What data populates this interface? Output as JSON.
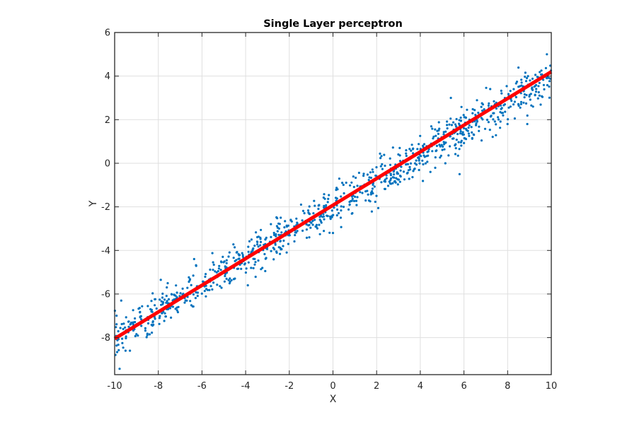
{
  "chart_data": {
    "type": "scatter",
    "title": "Single Layer perceptron",
    "xlabel": "X",
    "ylabel": "Y",
    "xlim": [
      -10,
      10
    ],
    "ylim": [
      -9.7,
      6
    ],
    "x_ticks": [
      -10,
      -8,
      -6,
      -4,
      -2,
      0,
      2,
      4,
      6,
      8,
      10
    ],
    "y_ticks": [
      -8,
      -6,
      -4,
      -2,
      0,
      2,
      4,
      6
    ],
    "grid": true,
    "legend": null,
    "series": [
      {
        "name": "data",
        "kind": "scatter",
        "color": "#0072BD",
        "marker_size": 2,
        "n_points": 1000,
        "x_range": [
          -10,
          10
        ],
        "model": {
          "slope": 0.6,
          "intercept": -2,
          "noise_std": 0.45
        },
        "notable_points": [
          {
            "x": -9.7,
            "y": -6.3
          },
          {
            "x": -9.3,
            "y": -8.6
          },
          {
            "x": -9.5,
            "y": -8.6
          },
          {
            "x": 4.5,
            "y": 0.9
          },
          {
            "x": 5.8,
            "y": -0.5
          },
          {
            "x": 5.4,
            "y": 3.0
          },
          {
            "x": 9.8,
            "y": 5.0
          },
          {
            "x": 8.9,
            "y": 1.8
          },
          {
            "x": 0.0,
            "y": -3.2
          },
          {
            "x": -3.9,
            "y": -5.6
          }
        ]
      },
      {
        "name": "fit",
        "kind": "line",
        "color": "#FF0000",
        "line_width": 5,
        "x": [
          -10,
          10
        ],
        "y": [
          -8.05,
          4.2
        ]
      }
    ]
  },
  "colors": {
    "axes": "#262626",
    "grid": "#dfdfdf",
    "background": "#ffffff"
  }
}
